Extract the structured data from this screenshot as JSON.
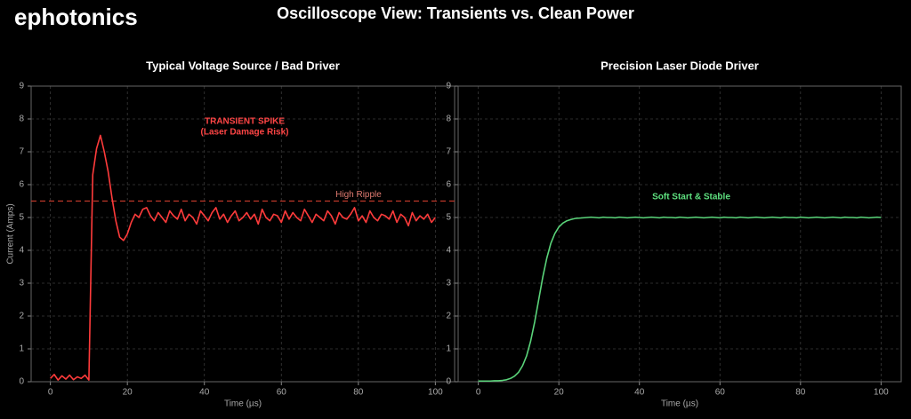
{
  "header": {
    "logo": "ephotonics",
    "title": "Oscilloscope View: Transients vs. Clean Power"
  },
  "chart_data": [
    {
      "type": "line",
      "title": "Typical Voltage Source / Bad Driver",
      "xlabel": "Time (µs)",
      "ylabel": "Current (Amps)",
      "xlim": [
        -5,
        105
      ],
      "ylim": [
        0,
        9
      ],
      "xticks": [
        0,
        20,
        40,
        60,
        80,
        100
      ],
      "yticks": [
        0,
        1,
        2,
        3,
        4,
        5,
        6,
        7,
        8,
        9
      ],
      "grid": true,
      "annotations": [
        "TRANSIENT SPIKE",
        "(Laser Damage Risk)"
      ],
      "annotation_color": "#ff4545",
      "threshold": {
        "value": 5.5,
        "label": "High Ripple",
        "color": "#c0392b",
        "label_color": "#e07a70"
      },
      "x": [
        0,
        1,
        2,
        3,
        4,
        5,
        6,
        7,
        8,
        9,
        10,
        11,
        12,
        13,
        14,
        15,
        16,
        17,
        18,
        19,
        20,
        21,
        22,
        23,
        24,
        25,
        26,
        27,
        28,
        29,
        30,
        31,
        32,
        33,
        34,
        35,
        36,
        37,
        38,
        39,
        40,
        41,
        42,
        43,
        44,
        45,
        46,
        47,
        48,
        49,
        50,
        51,
        52,
        53,
        54,
        55,
        56,
        57,
        58,
        59,
        60,
        61,
        62,
        63,
        64,
        65,
        66,
        67,
        68,
        69,
        70,
        71,
        72,
        73,
        74,
        75,
        76,
        77,
        78,
        79,
        80,
        81,
        82,
        83,
        84,
        85,
        86,
        87,
        88,
        89,
        90,
        91,
        92,
        93,
        94,
        95,
        96,
        97,
        98,
        99,
        100
      ],
      "series": [
        {
          "color": "#ff3b3b",
          "values": [
            0.1,
            0.22,
            0.05,
            0.18,
            0.08,
            0.2,
            0.06,
            0.15,
            0.1,
            0.2,
            0.05,
            6.3,
            7.1,
            7.5,
            7.0,
            6.4,
            5.6,
            4.9,
            4.4,
            4.3,
            4.5,
            4.85,
            5.1,
            5.0,
            5.25,
            5.3,
            5.05,
            4.9,
            5.15,
            5.0,
            4.85,
            5.2,
            5.05,
            4.95,
            5.25,
            4.9,
            5.1,
            5.0,
            4.8,
            5.2,
            5.05,
            4.9,
            5.15,
            5.3,
            4.95,
            5.1,
            4.85,
            5.05,
            5.2,
            4.9,
            5.0,
            5.15,
            4.95,
            5.1,
            4.8,
            5.25,
            5.0,
            4.9,
            5.1,
            5.05,
            4.85,
            5.2,
            4.95,
            5.15,
            5.0,
            4.9,
            5.25,
            5.05,
            4.85,
            5.1,
            5.0,
            4.9,
            5.2,
            5.05,
            4.8,
            5.15,
            5.0,
            4.95,
            5.1,
            5.3,
            4.9,
            5.05,
            4.85,
            5.2,
            5.0,
            4.9,
            5.1,
            5.05,
            4.95,
            5.2,
            4.85,
            5.1,
            5.0,
            4.75,
            5.15,
            4.9,
            5.05,
            4.95,
            5.1,
            4.85,
            5.0
          ]
        }
      ]
    },
    {
      "type": "line",
      "title": "Precision Laser Diode Driver",
      "xlabel": "Time (µs)",
      "xlim": [
        -5,
        105
      ],
      "ylim": [
        0,
        9
      ],
      "xticks": [
        0,
        20,
        40,
        60,
        80,
        100
      ],
      "yticks": [
        0,
        1,
        2,
        3,
        4,
        5,
        6,
        7,
        8,
        9
      ],
      "grid": true,
      "annotations": [
        "Soft Start & Stable"
      ],
      "annotation_color": "#5ee07f",
      "x": [
        0,
        1,
        2,
        3,
        4,
        5,
        6,
        7,
        8,
        9,
        10,
        11,
        12,
        13,
        14,
        15,
        16,
        17,
        18,
        19,
        20,
        21,
        22,
        23,
        24,
        25,
        26,
        27,
        28,
        29,
        30,
        31,
        32,
        33,
        34,
        35,
        36,
        37,
        38,
        39,
        40,
        41,
        42,
        43,
        44,
        45,
        46,
        47,
        48,
        49,
        50,
        51,
        52,
        53,
        54,
        55,
        56,
        57,
        58,
        59,
        60,
        61,
        62,
        63,
        64,
        65,
        66,
        67,
        68,
        69,
        70,
        71,
        72,
        73,
        74,
        75,
        76,
        77,
        78,
        79,
        80,
        81,
        82,
        83,
        84,
        85,
        86,
        87,
        88,
        89,
        90,
        91,
        92,
        93,
        94,
        95,
        96,
        97,
        98,
        99,
        100
      ],
      "series": [
        {
          "color": "#5ad47a",
          "values": [
            0.02,
            0.02,
            0.02,
            0.02,
            0.03,
            0.03,
            0.04,
            0.06,
            0.1,
            0.17,
            0.29,
            0.49,
            0.79,
            1.24,
            1.82,
            2.5,
            3.18,
            3.76,
            4.21,
            4.51,
            4.71,
            4.83,
            4.9,
            4.94,
            4.97,
            4.98,
            4.99,
            5.0,
            5.01,
            5.0,
            4.99,
            5.01,
            5.0,
            5.0,
            4.99,
            5.01,
            5.0,
            4.99,
            5.0,
            5.01,
            5.0,
            4.99,
            5.0,
            5.01,
            5.0,
            4.99,
            5.01,
            5.0,
            5.0,
            4.99,
            5.01,
            5.0,
            4.99,
            5.0,
            5.01,
            5.0,
            4.99,
            5.0,
            5.01,
            5.0,
            4.99,
            5.01,
            5.0,
            5.0,
            4.99,
            5.01,
            5.0,
            4.99,
            5.0,
            5.01,
            5.0,
            4.99,
            5.0,
            5.01,
            5.0,
            4.99,
            5.01,
            5.0,
            5.0,
            4.99,
            5.01,
            5.0,
            4.99,
            5.0,
            5.01,
            5.0,
            4.99,
            5.0,
            5.01,
            5.0,
            4.99,
            5.01,
            5.0,
            5.0,
            4.99,
            5.01,
            5.0,
            4.99,
            5.0,
            5.01,
            5.0
          ]
        }
      ]
    }
  ]
}
